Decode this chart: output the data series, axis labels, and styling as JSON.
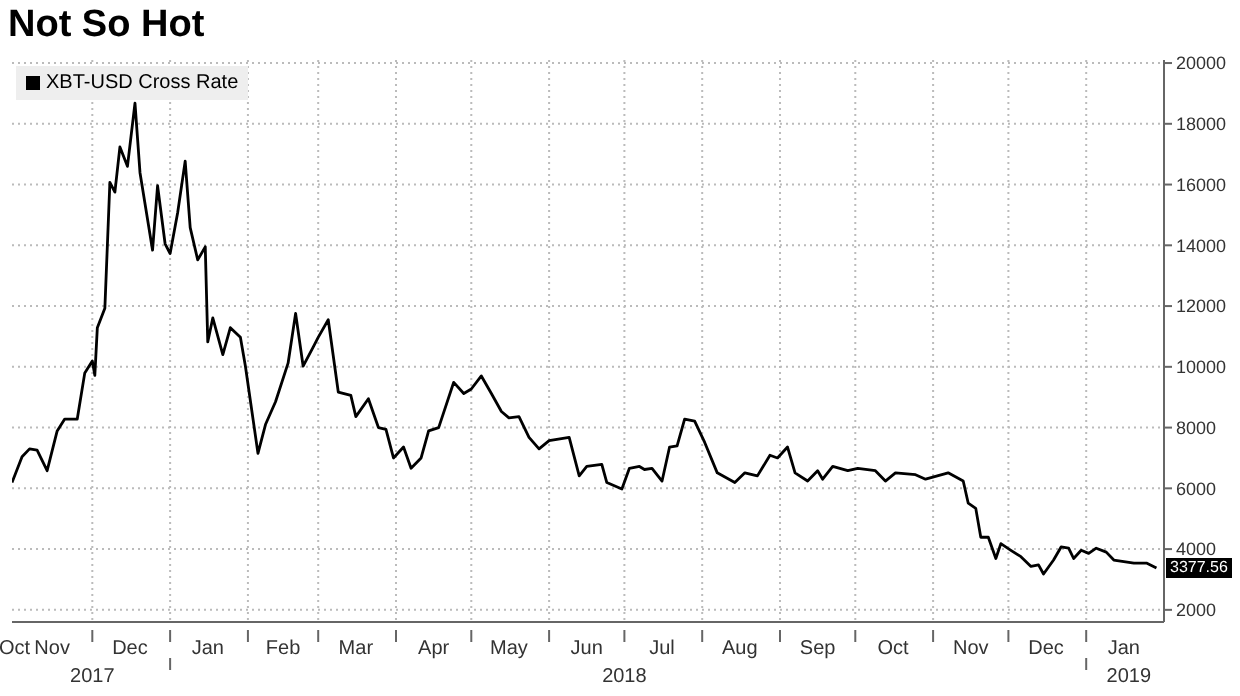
{
  "chart_data": {
    "type": "line",
    "title": "Not So Hot",
    "x": [
      "2017-10-30",
      "2017-11-03",
      "2017-11-06",
      "2017-11-09",
      "2017-11-13",
      "2017-11-17",
      "2017-11-20",
      "2017-11-25",
      "2017-11-28",
      "2017-12-01",
      "2017-12-02",
      "2017-12-03",
      "2017-12-06",
      "2017-12-08",
      "2017-12-10",
      "2017-12-12",
      "2017-12-15",
      "2017-12-18",
      "2017-12-20",
      "2017-12-25",
      "2017-12-27",
      "2017-12-30",
      "2018-01-01",
      "2018-01-04",
      "2018-01-07",
      "2018-01-09",
      "2018-01-12",
      "2018-01-15",
      "2018-01-16",
      "2018-01-18",
      "2018-01-22",
      "2018-01-25",
      "2018-01-29",
      "2018-01-31",
      "2018-02-05",
      "2018-02-08",
      "2018-02-12",
      "2018-02-17",
      "2018-02-20",
      "2018-02-23",
      "2018-02-27",
      "2018-03-01",
      "2018-03-05",
      "2018-03-09",
      "2018-03-14",
      "2018-03-16",
      "2018-03-21",
      "2018-03-25",
      "2018-03-28",
      "2018-03-31",
      "2018-04-04",
      "2018-04-07",
      "2018-04-11",
      "2018-04-14",
      "2018-04-18",
      "2018-04-24",
      "2018-04-28",
      "2018-05-01",
      "2018-05-05",
      "2018-05-09",
      "2018-05-13",
      "2018-05-16",
      "2018-05-20",
      "2018-05-24",
      "2018-05-28",
      "2018-06-01",
      "2018-06-09",
      "2018-06-13",
      "2018-06-16",
      "2018-06-22",
      "2018-06-24",
      "2018-06-30",
      "2018-07-03",
      "2018-07-07",
      "2018-07-09",
      "2018-07-12",
      "2018-07-16",
      "2018-07-19",
      "2018-07-22",
      "2018-07-25",
      "2018-07-29",
      "2018-08-02",
      "2018-08-07",
      "2018-08-14",
      "2018-08-18",
      "2018-08-23",
      "2018-08-28",
      "2018-08-31",
      "2018-09-04",
      "2018-09-07",
      "2018-09-12",
      "2018-09-16",
      "2018-09-18",
      "2018-09-22",
      "2018-09-28",
      "2018-10-02",
      "2018-10-09",
      "2018-10-13",
      "2018-10-17",
      "2018-10-25",
      "2018-10-29",
      "2018-11-07",
      "2018-11-13",
      "2018-11-15",
      "2018-11-18",
      "2018-11-20",
      "2018-11-23",
      "2018-11-26",
      "2018-11-28",
      "2018-12-02",
      "2018-12-06",
      "2018-12-10",
      "2018-12-13",
      "2018-12-15",
      "2018-12-19",
      "2018-12-22",
      "2018-12-25",
      "2018-12-27",
      "2018-12-30",
      "2019-01-02",
      "2019-01-05",
      "2019-01-09",
      "2019-01-12",
      "2019-01-20",
      "2019-01-25",
      "2019-01-29"
    ],
    "series": [
      {
        "name": "XBT-USD Cross Rate",
        "color": "#000000",
        "values": [
          6190,
          7040,
          7300,
          7260,
          6580,
          7890,
          8280,
          8280,
          9800,
          10190,
          9720,
          11290,
          11930,
          16070,
          15750,
          17240,
          16600,
          18680,
          16390,
          13840,
          15960,
          14050,
          13730,
          15070,
          16770,
          14580,
          13520,
          13950,
          10820,
          11610,
          10400,
          11290,
          10970,
          10020,
          7150,
          8100,
          8850,
          10120,
          11760,
          10020,
          10650,
          10970,
          11550,
          9170,
          9060,
          8360,
          8950,
          8000,
          7940,
          7000,
          7360,
          6660,
          7000,
          7890,
          8000,
          9490,
          9120,
          9270,
          9700,
          9120,
          8530,
          8320,
          8360,
          7680,
          7300,
          7570,
          7680,
          6410,
          6720,
          6790,
          6190,
          5980,
          6660,
          6720,
          6620,
          6660,
          6240,
          7360,
          7400,
          8280,
          8210,
          7510,
          6510,
          6190,
          6510,
          6410,
          7090,
          7000,
          7360,
          6510,
          6240,
          6580,
          6300,
          6720,
          6580,
          6660,
          6580,
          6240,
          6510,
          6450,
          6300,
          6510,
          6240,
          5510,
          5340,
          4390,
          4390,
          3690,
          4180,
          3960,
          3750,
          3430,
          3480,
          3180,
          3640,
          4070,
          4030,
          3690,
          3960,
          3860,
          4030,
          3900,
          3640,
          3540,
          3540,
          3377.56
        ]
      }
    ],
    "xlim": [
      "2017-10-30",
      "2019-02-01"
    ],
    "xticks": [
      {
        "value": "2017-10-31",
        "label": "Oct"
      },
      {
        "value": "2017-11-15",
        "label": "Nov"
      },
      {
        "value": "2017-12-01",
        "label": null
      },
      {
        "value": "2017-12-16",
        "label": "Dec"
      },
      {
        "value": "2018-01-01",
        "label": null
      },
      {
        "value": "2018-01-16",
        "label": "Jan"
      },
      {
        "value": "2018-02-01",
        "label": null
      },
      {
        "value": "2018-02-15",
        "label": "Feb"
      },
      {
        "value": "2018-03-01",
        "label": null
      },
      {
        "value": "2018-03-16",
        "label": "Mar"
      },
      {
        "value": "2018-04-01",
        "label": null
      },
      {
        "value": "2018-04-16",
        "label": "Apr"
      },
      {
        "value": "2018-05-01",
        "label": null
      },
      {
        "value": "2018-05-16",
        "label": "May"
      },
      {
        "value": "2018-06-01",
        "label": null
      },
      {
        "value": "2018-06-16",
        "label": "Jun"
      },
      {
        "value": "2018-07-01",
        "label": null
      },
      {
        "value": "2018-07-16",
        "label": "Jul"
      },
      {
        "value": "2018-08-01",
        "label": null
      },
      {
        "value": "2018-08-16",
        "label": "Aug"
      },
      {
        "value": "2018-09-01",
        "label": null
      },
      {
        "value": "2018-09-16",
        "label": "Sep"
      },
      {
        "value": "2018-10-01",
        "label": null
      },
      {
        "value": "2018-10-16",
        "label": "Oct"
      },
      {
        "value": "2018-11-01",
        "label": null
      },
      {
        "value": "2018-11-16",
        "label": "Nov"
      },
      {
        "value": "2018-12-01",
        "label": null
      },
      {
        "value": "2018-12-16",
        "label": "Dec"
      },
      {
        "value": "2019-01-01",
        "label": null
      },
      {
        "value": "2019-01-16",
        "label": "Jan"
      }
    ],
    "x2lim": [
      "2017-10-30",
      "2019-02-01"
    ],
    "x2ticks": [
      {
        "value": "2017-12-01",
        "label": "2017"
      },
      {
        "value": "2018-01-01",
        "label": null
      },
      {
        "value": "2018-07-01",
        "label": "2018"
      },
      {
        "value": "2019-01-01",
        "label": null
      },
      {
        "value": "2019-01-18",
        "label": "2019"
      }
    ],
    "ylim": [
      1600,
      20100
    ],
    "yticks": [
      2000,
      4000,
      6000,
      8000,
      10000,
      12000,
      14000,
      16000,
      18000,
      20000
    ],
    "annotations": [
      {
        "text": "3377.56",
        "x": "2019-01-29",
        "y": 3377.56
      }
    ],
    "grid": true,
    "legend": "top left",
    "marker": "none",
    "line_style": "solid"
  }
}
